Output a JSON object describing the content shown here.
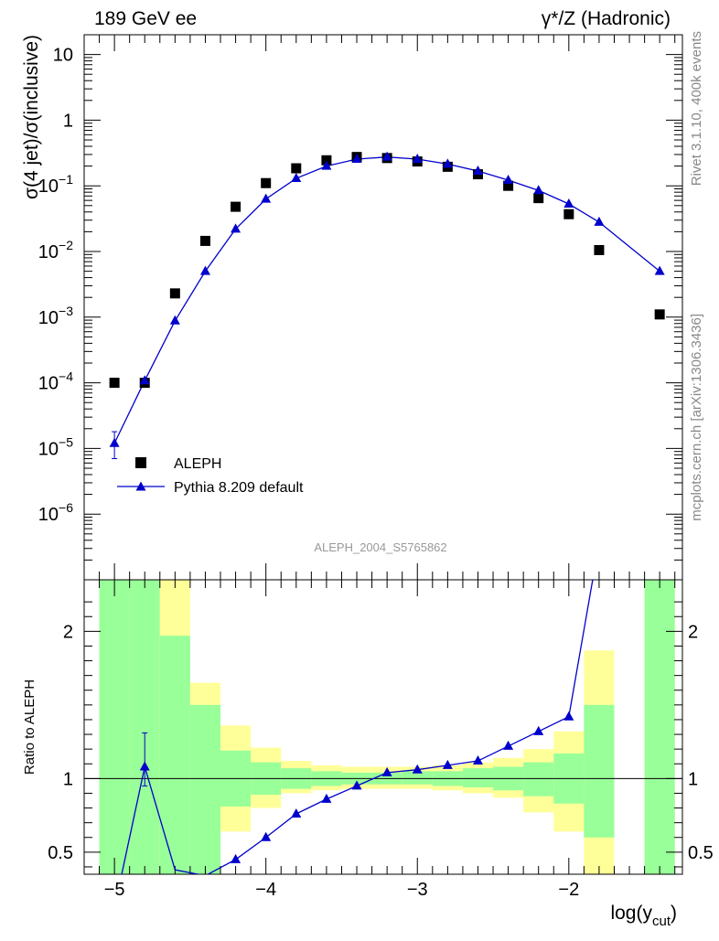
{
  "header": {
    "left_title": "189 GeV ee",
    "right_title": "γ*/Z (Hadronic)"
  },
  "side_labels": {
    "rivet": "Rivet 3.1.10,  400k events",
    "mcplots": "mcplots.cern.ch [arXiv:1306.3436]"
  },
  "analysis_label": "ALEPH_2004_S5765862",
  "colors": {
    "data": "#000000",
    "mc": "#0000cc",
    "band_inner": "#99ff99",
    "band_outer": "#ffff99"
  },
  "chart_data": [
    {
      "type": "scatter",
      "panel": "main",
      "ylabel": "σ(4 jet)/σ(inclusive)",
      "xlim": [
        -5.2,
        -1.25
      ],
      "ylim": [
        1e-07,
        20
      ],
      "y_scale": "log",
      "legend_placement": "lower-left",
      "y_ticks": [
        {
          "v": 10,
          "base": "10",
          "exp": ""
        },
        {
          "v": 1,
          "base": "1",
          "exp": ""
        },
        {
          "v": 0.1,
          "base": "10",
          "exp": "−1"
        },
        {
          "v": 0.01,
          "base": "10",
          "exp": "−2"
        },
        {
          "v": 0.001,
          "base": "10",
          "exp": "−3"
        },
        {
          "v": 0.0001,
          "base": "10",
          "exp": "−4"
        },
        {
          "v": 1e-05,
          "base": "10",
          "exp": "−5"
        },
        {
          "v": 1e-06,
          "base": "10",
          "exp": "−6"
        }
      ],
      "series": [
        {
          "name": "ALEPH",
          "marker": "square",
          "x": [
            -5.0,
            -4.8,
            -4.6,
            -4.4,
            -4.2,
            -4.0,
            -3.8,
            -3.6,
            -3.4,
            -3.2,
            -3.0,
            -2.8,
            -2.6,
            -2.4,
            -2.2,
            -2.0,
            -1.8,
            -1.4
          ],
          "y": [
            0.0001,
            0.0001,
            0.0023,
            0.0145,
            0.048,
            0.11,
            0.185,
            0.245,
            0.275,
            0.265,
            0.235,
            0.195,
            0.15,
            0.1,
            0.065,
            0.037,
            0.0105,
            0.0011
          ]
        },
        {
          "name": "Pythia 8.209 default",
          "marker": "triangle",
          "x": [
            -5.0,
            -4.8,
            -4.6,
            -4.4,
            -4.2,
            -4.0,
            -3.8,
            -3.6,
            -3.4,
            -3.2,
            -3.0,
            -2.8,
            -2.6,
            -2.4,
            -2.2,
            -2.0,
            -1.8,
            -1.4
          ],
          "y": [
            1.2e-05,
            0.000108,
            0.00088,
            0.005,
            0.022,
            0.063,
            0.13,
            0.2,
            0.255,
            0.275,
            0.255,
            0.215,
            0.168,
            0.122,
            0.085,
            0.053,
            0.028,
            0.005
          ],
          "err_low": [
            7e-06,
            null,
            null,
            null,
            null,
            null,
            null,
            null,
            null,
            null,
            null,
            null,
            null,
            null,
            null,
            null,
            null,
            null
          ],
          "err_high": [
            1.8e-05,
            null,
            null,
            null,
            null,
            null,
            null,
            null,
            null,
            null,
            null,
            null,
            null,
            null,
            null,
            null,
            null,
            null
          ]
        }
      ]
    },
    {
      "type": "line",
      "panel": "ratio",
      "xlabel_base": "log(y",
      "xlabel_sub": "cut",
      "xlabel_end": ")",
      "ylabel": "Ratio to ALEPH",
      "xlim": [
        -5.2,
        -1.25
      ],
      "ylim": [
        0.35,
        2.35
      ],
      "x_ticks": [
        -5,
        -4,
        -3,
        -2
      ],
      "x_tick_labels": [
        "−5",
        "−4",
        "−3",
        "−2"
      ],
      "y_ticks": [
        0.5,
        1,
        2
      ],
      "y_tick_labels": [
        "0.5",
        "1",
        "2"
      ],
      "reference_line": 1,
      "bands": [
        {
          "x0": -5.1,
          "x1": -4.9,
          "inner": [
            0.0,
            2.4
          ],
          "outer": [
            0.0,
            2.4
          ]
        },
        {
          "x0": -4.9,
          "x1": -4.7,
          "inner": [
            0.0,
            2.4
          ],
          "outer": [
            0.0,
            2.4
          ]
        },
        {
          "x0": -4.7,
          "x1": -4.5,
          "inner": [
            0.0,
            1.97
          ],
          "outer": [
            0.0,
            2.4
          ]
        },
        {
          "x0": -4.5,
          "x1": -4.3,
          "inner": [
            0.0,
            1.5
          ],
          "outer": [
            0.37,
            1.65
          ]
        },
        {
          "x0": -4.3,
          "x1": -4.1,
          "inner": [
            0.81,
            1.19
          ],
          "outer": [
            0.64,
            1.36
          ]
        },
        {
          "x0": -4.1,
          "x1": -3.9,
          "inner": [
            0.89,
            1.11
          ],
          "outer": [
            0.8,
            1.21
          ]
        },
        {
          "x0": -3.9,
          "x1": -3.7,
          "inner": [
            0.93,
            1.07
          ],
          "outer": [
            0.9,
            1.12
          ]
        },
        {
          "x0": -3.7,
          "x1": -3.5,
          "inner": [
            0.95,
            1.05
          ],
          "outer": [
            0.92,
            1.09
          ]
        },
        {
          "x0": -3.5,
          "x1": -3.3,
          "inner": [
            0.96,
            1.04
          ],
          "outer": [
            0.93,
            1.08
          ]
        },
        {
          "x0": -3.3,
          "x1": -3.1,
          "inner": [
            0.96,
            1.04
          ],
          "outer": [
            0.93,
            1.08
          ]
        },
        {
          "x0": -3.1,
          "x1": -2.9,
          "inner": [
            0.96,
            1.05
          ],
          "outer": [
            0.93,
            1.08
          ]
        },
        {
          "x0": -2.9,
          "x1": -2.7,
          "inner": [
            0.95,
            1.05
          ],
          "outer": [
            0.92,
            1.09
          ]
        },
        {
          "x0": -2.7,
          "x1": -2.5,
          "inner": [
            0.94,
            1.07
          ],
          "outer": [
            0.9,
            1.11
          ]
        },
        {
          "x0": -2.5,
          "x1": -2.3,
          "inner": [
            0.92,
            1.08
          ],
          "outer": [
            0.87,
            1.14
          ]
        },
        {
          "x0": -2.3,
          "x1": -2.1,
          "inner": [
            0.88,
            1.11
          ],
          "outer": [
            0.77,
            1.2
          ]
        },
        {
          "x0": -2.1,
          "x1": -1.9,
          "inner": [
            0.83,
            1.17
          ],
          "outer": [
            0.64,
            1.32
          ]
        },
        {
          "x0": -1.9,
          "x1": -1.7,
          "inner": [
            0.6,
            1.5
          ],
          "outer": [
            0.0,
            1.87
          ]
        },
        {
          "x0": -1.5,
          "x1": -1.3,
          "inner": [
            0.0,
            2.4
          ],
          "outer": [
            0.0,
            2.4
          ]
        }
      ],
      "series": [
        {
          "name": "Pythia 8.209 default",
          "marker": "triangle",
          "x": [
            -5.0,
            -4.8,
            -4.6,
            -4.4,
            -4.2,
            -4.0,
            -3.8,
            -3.6,
            -3.4,
            -3.2,
            -3.0,
            -2.8,
            -2.6,
            -2.4,
            -2.2,
            -2.0,
            -1.8
          ],
          "y": [
            0.12,
            1.08,
            0.38,
            0.34,
            0.45,
            0.6,
            0.76,
            0.86,
            0.95,
            1.04,
            1.06,
            1.09,
            1.12,
            1.22,
            1.32,
            1.42,
            2.6
          ],
          "show_marker": [
            false,
            true,
            false,
            false,
            true,
            true,
            true,
            true,
            true,
            true,
            true,
            true,
            true,
            true,
            true,
            true,
            false
          ],
          "err_low": [
            null,
            0.95,
            null,
            null,
            null,
            null,
            null,
            null,
            null,
            null,
            null,
            null,
            null,
            null,
            null,
            null,
            null
          ],
          "err_high": [
            null,
            1.31,
            null,
            null,
            null,
            null,
            null,
            null,
            null,
            null,
            null,
            null,
            null,
            null,
            null,
            null,
            null
          ]
        }
      ]
    }
  ]
}
